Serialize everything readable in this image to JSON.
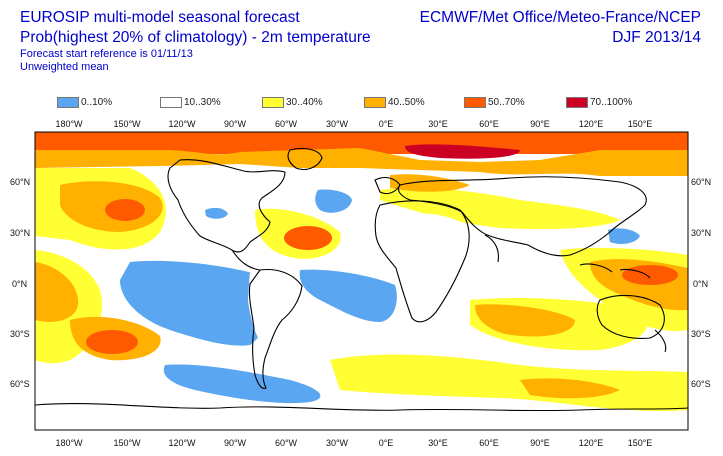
{
  "header": {
    "title": "EUROSIP multi-model seasonal forecast",
    "subtitle": "Prob(highest 20% of climatology) - 2m temperature",
    "ref": "Forecast start reference is 01/11/13",
    "mean": "Unweighted mean",
    "centres": "ECMWF/Met Office/Meteo-France/NCEP",
    "season": "DJF 2013/14"
  },
  "legend": [
    {
      "label": "0..10%",
      "color": "#5aa6f0"
    },
    {
      "label": "10..30%",
      "color": "#ffffff"
    },
    {
      "label": "30..40%",
      "color": "#ffff33"
    },
    {
      "label": "40..50%",
      "color": "#ffb000"
    },
    {
      "label": "50..70%",
      "color": "#ff5a00"
    },
    {
      "label": "70..100%",
      "color": "#cc0022"
    }
  ],
  "map": {
    "lon_labels": [
      "180°W",
      "150°W",
      "120°W",
      "90°W",
      "60°W",
      "30°W",
      "0°E",
      "30°E",
      "60°E",
      "90°E",
      "120°E",
      "150°E"
    ],
    "lat_labels": [
      "60°N",
      "30°N",
      "0°N",
      "30°S",
      "60°S"
    ]
  }
}
